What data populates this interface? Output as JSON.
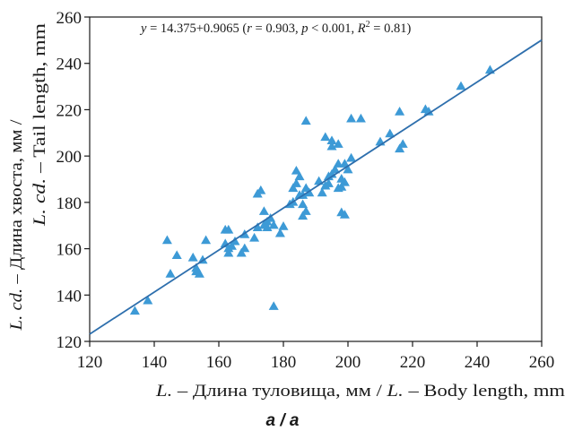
{
  "panel_label": "a / a",
  "chart_data": {
    "type": "scatter",
    "equation_text": {
      "y": "y",
      "eq": " = 14.375+0.9065 (",
      "r": "r",
      "r_val": " = 0.903, ",
      "p": "p",
      "p_val": " < 0.001, ",
      "R": "R",
      "sup": "2",
      "R_val": " = 0.81)"
    },
    "xlabel": "L. – Длина туловища, мм / L. – Body length, mm",
    "xlabel_parts": {
      "l1": "L.",
      "t1": " – Длина туловища, мм / ",
      "l2": "L.",
      "t2": " – Body length, mm"
    },
    "ylabel_line1": "L. cd. – Длина хвоста, мм /",
    "ylabel_line1_parts": {
      "l": "L. cd.",
      "t": " – Длина хвоста, мм /"
    },
    "ylabel_line2": "L. cd. – Tail length, mm",
    "ylabel_line2_parts": {
      "l": "L. cd.",
      "t": " – Tail length, mm"
    },
    "xlim": [
      120,
      260
    ],
    "ylim": [
      120,
      260
    ],
    "xticks": [
      120,
      140,
      160,
      180,
      200,
      220,
      240,
      260
    ],
    "yticks": [
      120,
      140,
      160,
      180,
      200,
      220,
      240,
      260
    ],
    "marker_color": "#3d9ad6",
    "line_color": "#2e6fad",
    "regression": {
      "intercept": 14.375,
      "slope": 0.9065,
      "x_range": [
        120,
        260
      ]
    },
    "points": [
      [
        134,
        133
      ],
      [
        138,
        137.5
      ],
      [
        144,
        163.5
      ],
      [
        145,
        149
      ],
      [
        147,
        157
      ],
      [
        152,
        156
      ],
      [
        153,
        151.5
      ],
      [
        153,
        150
      ],
      [
        154,
        149
      ],
      [
        155,
        155
      ],
      [
        156,
        163.5
      ],
      [
        162,
        162
      ],
      [
        162,
        168
      ],
      [
        163,
        158
      ],
      [
        163,
        160
      ],
      [
        163,
        168
      ],
      [
        164,
        161
      ],
      [
        165,
        163
      ],
      [
        167,
        158
      ],
      [
        168,
        160
      ],
      [
        168,
        166
      ],
      [
        171,
        164.5
      ],
      [
        172,
        183.5
      ],
      [
        172,
        169
      ],
      [
        173,
        185
      ],
      [
        174,
        176
      ],
      [
        174,
        170
      ],
      [
        175,
        171.5
      ],
      [
        175,
        169
      ],
      [
        176,
        173
      ],
      [
        177,
        170
      ],
      [
        177,
        135
      ],
      [
        179,
        166.5
      ],
      [
        180,
        169.5
      ],
      [
        182,
        179
      ],
      [
        183,
        180
      ],
      [
        183,
        186
      ],
      [
        184,
        193.5
      ],
      [
        184,
        188
      ],
      [
        185,
        191
      ],
      [
        185,
        183
      ],
      [
        186,
        174
      ],
      [
        186,
        179
      ],
      [
        186,
        183
      ],
      [
        187,
        176
      ],
      [
        187,
        186
      ],
      [
        187,
        215
      ],
      [
        188,
        184
      ],
      [
        191,
        189
      ],
      [
        192,
        184
      ],
      [
        193,
        208
      ],
      [
        193,
        187
      ],
      [
        194,
        188
      ],
      [
        194,
        191
      ],
      [
        195,
        206.5
      ],
      [
        195,
        204
      ],
      [
        195,
        192
      ],
      [
        196,
        194
      ],
      [
        197,
        186
      ],
      [
        197,
        196.5
      ],
      [
        197,
        205
      ],
      [
        198,
        175.5
      ],
      [
        198,
        190
      ],
      [
        198,
        186.5
      ],
      [
        199,
        174.5
      ],
      [
        199,
        196.5
      ],
      [
        199,
        188.5
      ],
      [
        200,
        194
      ],
      [
        201,
        199
      ],
      [
        201,
        216
      ],
      [
        204,
        216
      ],
      [
        210,
        206
      ],
      [
        213,
        209.5
      ],
      [
        216,
        203
      ],
      [
        216,
        219
      ],
      [
        217,
        205
      ],
      [
        224,
        220
      ],
      [
        225,
        219
      ],
      [
        235,
        230
      ],
      [
        244,
        237
      ]
    ]
  }
}
